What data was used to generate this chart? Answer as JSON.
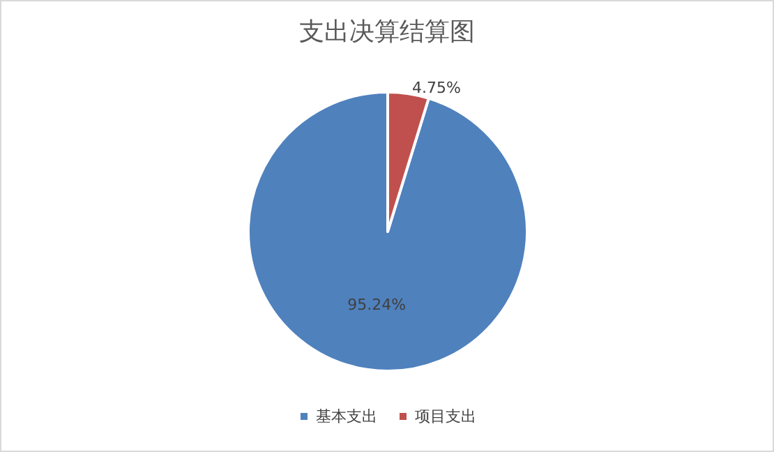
{
  "chart_data": {
    "type": "pie",
    "title": "支出决算结算图",
    "categories": [
      "基本支出",
      "项目支出"
    ],
    "values": [
      95.24,
      4.75
    ],
    "colors": [
      "#4f81bd",
      "#c0504d"
    ],
    "value_labels": [
      "95.24%",
      "4.75%"
    ],
    "legend": "bottom"
  }
}
